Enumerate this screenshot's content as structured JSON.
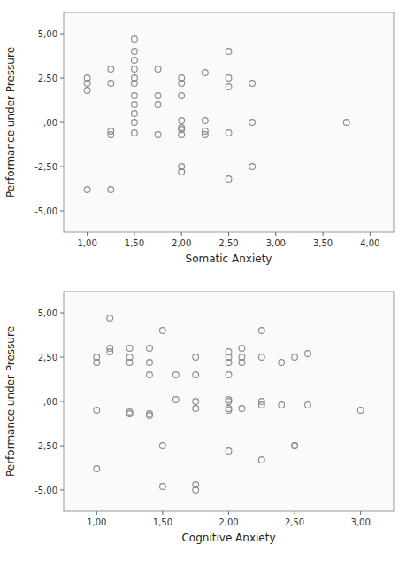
{
  "chart_data": [
    {
      "type": "scatter",
      "xlabel": "Somatic Anxiety",
      "ylabel": "Performance under Pressure",
      "color": "#8a8a8a",
      "grid": false,
      "x": [
        1.0,
        1.0,
        1.0,
        1.0,
        1.25,
        1.25,
        1.25,
        1.25,
        1.25,
        1.5,
        1.5,
        1.5,
        1.5,
        1.5,
        1.5,
        1.5,
        1.5,
        1.5,
        1.5,
        1.5,
        1.75,
        1.75,
        1.75,
        1.75,
        2.0,
        2.0,
        2.0,
        2.0,
        2.0,
        2.0,
        2.0,
        2.0,
        2.0,
        2.25,
        2.25,
        2.25,
        2.25,
        2.5,
        2.5,
        2.5,
        2.5,
        2.5,
        2.75,
        2.75,
        2.75,
        3.75
      ],
      "values": [
        2.5,
        2.2,
        1.8,
        -3.8,
        3.0,
        2.2,
        -0.5,
        -0.7,
        -3.8,
        4.7,
        4.0,
        3.5,
        3.0,
        2.5,
        2.2,
        1.5,
        1.0,
        0.5,
        0.0,
        -0.6,
        3.0,
        1.5,
        1.0,
        -0.7,
        2.5,
        2.2,
        1.5,
        0.1,
        -0.3,
        -0.4,
        -0.7,
        -2.5,
        -2.8,
        2.8,
        0.1,
        -0.5,
        -0.7,
        4.0,
        2.5,
        2.0,
        -0.6,
        -3.2,
        2.2,
        0.0,
        -2.5,
        0.0
      ],
      "xlim": [
        0.75,
        4.25
      ],
      "ylim": [
        -6.2,
        6.2
      ],
      "xticks": [
        {
          "value": 1.0,
          "label": "1,00"
        },
        {
          "value": 1.5,
          "label": "1,50"
        },
        {
          "value": 2.0,
          "label": "2,00"
        },
        {
          "value": 2.5,
          "label": "2,50"
        },
        {
          "value": 3.0,
          "label": "3,00"
        },
        {
          "value": 3.5,
          "label": "3,50"
        },
        {
          "value": 4.0,
          "label": "4,00"
        }
      ],
      "yticks": [
        {
          "value": -5.0,
          "label": "-5,00"
        },
        {
          "value": -2.5,
          "label": "-2,50"
        },
        {
          "value": 0.0,
          "label": ",00"
        },
        {
          "value": 2.5,
          "label": "2,50"
        },
        {
          "value": 5.0,
          "label": "5,00"
        }
      ]
    },
    {
      "type": "scatter",
      "xlabel": "Cognitive Anxiety",
      "ylabel": "Performance under Pressure",
      "color": "#8a8a8a",
      "grid": false,
      "x": [
        1.0,
        1.0,
        1.0,
        1.0,
        1.1,
        1.1,
        1.1,
        1.25,
        1.25,
        1.25,
        1.25,
        1.25,
        1.4,
        1.4,
        1.4,
        1.4,
        1.4,
        1.5,
        1.5,
        1.5,
        1.6,
        1.6,
        1.75,
        1.75,
        1.75,
        1.75,
        1.75,
        1.75,
        2.0,
        2.0,
        2.0,
        2.0,
        2.0,
        2.0,
        2.0,
        2.0,
        2.0,
        2.1,
        2.1,
        2.1,
        2.1,
        2.25,
        2.25,
        2.25,
        2.25,
        2.25,
        2.4,
        2.4,
        2.5,
        2.5,
        2.5,
        2.6,
        2.6,
        3.0
      ],
      "values": [
        2.5,
        2.2,
        -0.5,
        -3.8,
        4.7,
        3.0,
        2.8,
        3.0,
        2.5,
        2.2,
        -0.6,
        -0.7,
        3.0,
        2.2,
        1.5,
        -0.7,
        -0.8,
        4.0,
        -2.5,
        -4.8,
        1.5,
        0.1,
        2.5,
        1.5,
        0.0,
        -0.4,
        -5.0,
        -4.7,
        2.8,
        2.5,
        2.2,
        1.5,
        0.1,
        0.0,
        -0.4,
        -0.5,
        -2.8,
        3.0,
        2.5,
        2.2,
        -0.4,
        4.0,
        2.5,
        0.0,
        -0.2,
        -3.3,
        2.2,
        -0.2,
        2.5,
        -2.5,
        -2.5,
        2.7,
        -0.2,
        -0.5
      ],
      "xlim": [
        0.75,
        3.25
      ],
      "ylim": [
        -6.2,
        6.2
      ],
      "xticks": [
        {
          "value": 1.0,
          "label": "1,00"
        },
        {
          "value": 1.5,
          "label": "1,50"
        },
        {
          "value": 2.0,
          "label": "2,00"
        },
        {
          "value": 2.5,
          "label": "2,50"
        },
        {
          "value": 3.0,
          "label": "3,00"
        }
      ],
      "yticks": [
        {
          "value": -5.0,
          "label": "-5,00"
        },
        {
          "value": -2.5,
          "label": "-2,50"
        },
        {
          "value": 0.0,
          "label": ",00"
        },
        {
          "value": 2.5,
          "label": "2,50"
        },
        {
          "value": 5.0,
          "label": "5,00"
        }
      ]
    }
  ]
}
